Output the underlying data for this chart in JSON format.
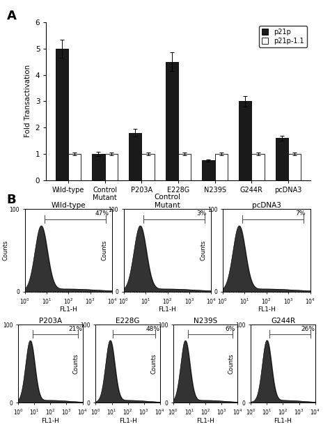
{
  "panel_A": {
    "categories": [
      "Wild-type",
      "Control\nMutant",
      "P203A",
      "E228G",
      "N239S",
      "G244R",
      "pcDNA3"
    ],
    "p21p_values": [
      5.0,
      1.0,
      1.8,
      4.5,
      0.75,
      3.0,
      1.6
    ],
    "p21p_errors": [
      0.35,
      0.08,
      0.15,
      0.35,
      0.05,
      0.2,
      0.1
    ],
    "p21p1_values": [
      1.0,
      1.0,
      1.0,
      1.0,
      1.0,
      1.0,
      1.0
    ],
    "p21p1_errors": [
      0.05,
      0.05,
      0.05,
      0.05,
      0.05,
      0.05,
      0.05
    ],
    "ylabel": "Fold Transactivation",
    "ylim": [
      0,
      6
    ],
    "yticks": [
      0,
      1,
      2,
      3,
      4,
      5,
      6
    ],
    "bar_color_black": "#1a1a1a",
    "bar_color_white": "#ffffff",
    "legend_labels": [
      "p21p",
      "p21p-1.1"
    ]
  },
  "panel_B": {
    "row1": [
      {
        "title": "Wild-type",
        "percent": "47%",
        "peak_log": 0.75
      },
      {
        "title": "Control\nMutant",
        "percent": "3%",
        "peak_log": 0.75
      },
      {
        "title": "pcDNA3",
        "percent": "7%",
        "peak_log": 0.75
      }
    ],
    "row2": [
      {
        "title": "P203A",
        "percent": "21%",
        "peak_log": 0.75
      },
      {
        "title": "E228G",
        "percent": "48%",
        "peak_log": 0.9
      },
      {
        "title": "N239S",
        "percent": "6%",
        "peak_log": 0.75
      },
      {
        "title": "G244R",
        "percent": "26%",
        "peak_log": 1.0
      }
    ],
    "xlabel": "FL1-H",
    "ylabel": "Counts"
  },
  "background_color": "#ffffff"
}
